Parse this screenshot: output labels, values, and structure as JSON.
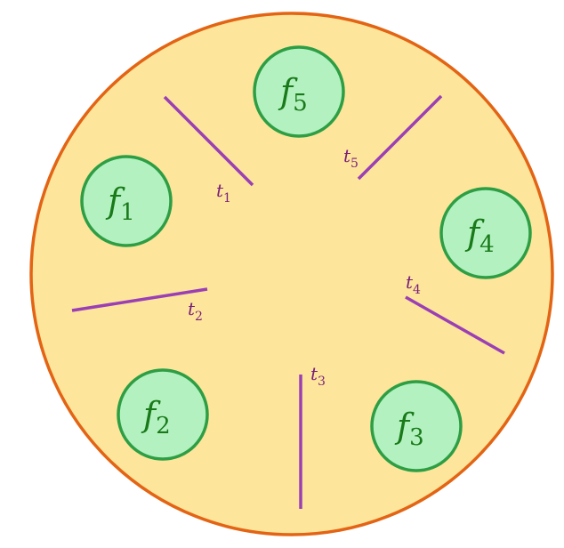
{
  "colors": {
    "table_fill": "#fde69b",
    "table_stroke": "#e36414",
    "philosopher_fill": "#b3f2c0",
    "philosopher_stroke": "#2e9e44",
    "philosopher_text": "#1a7a1a",
    "tool_stroke": "#9b3fb5",
    "tool_text": "#7a1f7a"
  },
  "philosophers": [
    {
      "base": "f",
      "sub": "1"
    },
    {
      "base": "f",
      "sub": "2"
    },
    {
      "base": "f",
      "sub": "3"
    },
    {
      "base": "f",
      "sub": "4"
    },
    {
      "base": "f",
      "sub": "5"
    }
  ],
  "tools": [
    {
      "base": "t",
      "sub": "1"
    },
    {
      "base": "t",
      "sub": "2"
    },
    {
      "base": "t",
      "sub": "3"
    },
    {
      "base": "t",
      "sub": "4"
    },
    {
      "base": "t",
      "sub": "5"
    }
  ]
}
